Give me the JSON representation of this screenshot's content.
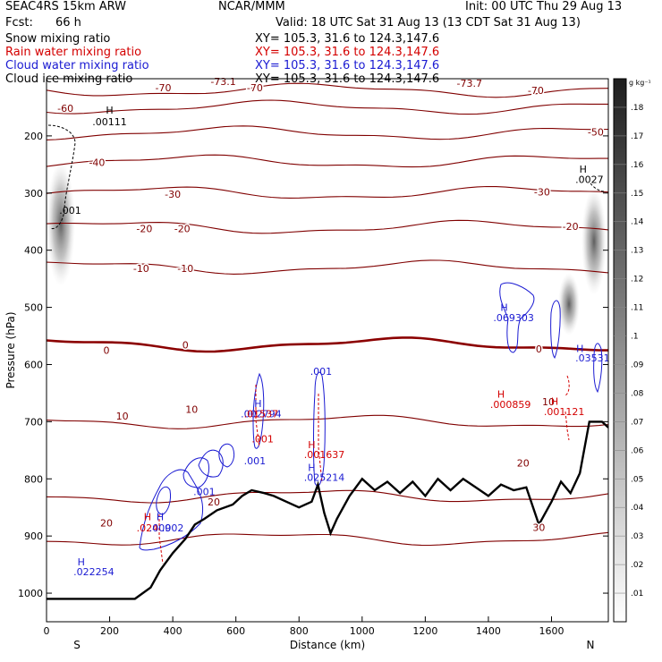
{
  "header": {
    "model": "SEAC4RS 15km ARW",
    "org": "NCAR/MMM",
    "init": "Init: 00 UTC Thu 29 Aug 13",
    "fcst_label": "Fcst:",
    "fcst_value": "66 h",
    "valid": "Valid: 18 UTC Sat 31 Aug 13 (13 CDT Sat 31 Aug 13)",
    "fields": [
      {
        "name": "Snow mixing ratio",
        "xy": "XY= 105.3, 31.6 to 124.3,147.6",
        "color": "#000000"
      },
      {
        "name": "Rain water mixing ratio",
        "xy": "XY= 105.3, 31.6 to 124.3,147.6",
        "color": "#d40000"
      },
      {
        "name": "Cloud water mixing ratio",
        "xy": "XY= 105.3, 31.6 to 124.3,147.6",
        "color": "#1a1ad2"
      },
      {
        "name": "Cloud ice mixing ratio",
        "xy": "XY= 105.3, 31.6 to 124.3,147.6",
        "color": "#000000"
      }
    ]
  },
  "chart_data": {
    "type": "cross-section",
    "xlabel": "Distance (km)",
    "ylabel": "Pressure (hPa)",
    "xlim": [
      0,
      1780
    ],
    "ylim": [
      1050,
      100
    ],
    "x_ticks": [
      0,
      200,
      400,
      600,
      800,
      1000,
      1200,
      1400,
      1600
    ],
    "y_ticks": [
      200,
      300,
      400,
      500,
      600,
      700,
      800,
      900,
      1000
    ],
    "x_end_labels": {
      "left": "S",
      "right": "N"
    },
    "colorbar": {
      "unit": "g kg⁻¹",
      "ticks": [
        ".01",
        ".02",
        ".03",
        ".04",
        ".05",
        ".06",
        ".07",
        ".08",
        ".09",
        ".1",
        ".11",
        ".12",
        ".13",
        ".14",
        ".15",
        ".16",
        ".17",
        ".18"
      ]
    },
    "temperature_contours": [
      {
        "label": "-70",
        "p": 120
      },
      {
        "label": "-60",
        "p": 150
      },
      {
        "label": "-50",
        "p": 195
      },
      {
        "label": "-40",
        "p": 245
      },
      {
        "label": "-30",
        "p": 300
      },
      {
        "label": "-20",
        "p": 360
      },
      {
        "label": "-10",
        "p": 430
      },
      {
        "label": "0",
        "p": 565
      },
      {
        "label": "10",
        "p": 700
      },
      {
        "label": "20",
        "p": 830
      },
      {
        "label": "30",
        "p": 905
      }
    ],
    "temperature_labels": [
      {
        "text": "-73.1",
        "x": 560,
        "p": 105
      },
      {
        "text": "-73.7",
        "x": 1340,
        "p": 108
      },
      {
        "text": "-70",
        "x": 370,
        "p": 116
      },
      {
        "text": "-70",
        "x": 660,
        "p": 116
      },
      {
        "text": "-70",
        "x": 1550,
        "p": 120
      },
      {
        "text": "-60",
        "x": 60,
        "p": 152
      },
      {
        "text": "-50",
        "x": 1740,
        "p": 193
      },
      {
        "text": "-40",
        "x": 160,
        "p": 246
      },
      {
        "text": "-30",
        "x": 400,
        "p": 302
      },
      {
        "text": "-30",
        "x": 1570,
        "p": 298
      },
      {
        "text": "-20",
        "x": 310,
        "p": 362
      },
      {
        "text": "-20",
        "x": 430,
        "p": 362
      },
      {
        "text": "-20",
        "x": 1660,
        "p": 358
      },
      {
        "text": "-10",
        "x": 300,
        "p": 432
      },
      {
        "text": "-10",
        "x": 440,
        "p": 432
      },
      {
        "text": "0",
        "x": 190,
        "p": 575
      },
      {
        "text": "0",
        "x": 440,
        "p": 566
      },
      {
        "text": "0",
        "x": 1560,
        "p": 573
      },
      {
        "text": "10",
        "x": 240,
        "p": 690
      },
      {
        "text": "10",
        "x": 460,
        "p": 678
      },
      {
        "text": "10",
        "x": 1590,
        "p": 665
      },
      {
        "text": "20",
        "x": 190,
        "p": 877
      },
      {
        "text": "20",
        "x": 530,
        "p": 840
      },
      {
        "text": "20",
        "x": 1510,
        "p": 772
      },
      {
        "text": "30",
        "x": 1560,
        "p": 885
      }
    ],
    "terrain": [
      [
        0,
        1010
      ],
      [
        280,
        1010
      ],
      [
        330,
        990
      ],
      [
        360,
        960
      ],
      [
        400,
        930
      ],
      [
        440,
        905
      ],
      [
        470,
        880
      ],
      [
        500,
        870
      ],
      [
        540,
        855
      ],
      [
        590,
        845
      ],
      [
        620,
        830
      ],
      [
        650,
        820
      ],
      [
        690,
        825
      ],
      [
        720,
        830
      ],
      [
        760,
        840
      ],
      [
        800,
        850
      ],
      [
        840,
        840
      ],
      [
        860,
        810
      ],
      [
        880,
        860
      ],
      [
        900,
        895
      ],
      [
        920,
        870
      ],
      [
        960,
        830
      ],
      [
        1000,
        800
      ],
      [
        1040,
        820
      ],
      [
        1080,
        805
      ],
      [
        1120,
        825
      ],
      [
        1160,
        805
      ],
      [
        1200,
        830
      ],
      [
        1240,
        800
      ],
      [
        1280,
        820
      ],
      [
        1320,
        800
      ],
      [
        1360,
        815
      ],
      [
        1400,
        830
      ],
      [
        1440,
        810
      ],
      [
        1480,
        820
      ],
      [
        1520,
        815
      ],
      [
        1560,
        880
      ],
      [
        1600,
        840
      ],
      [
        1630,
        805
      ],
      [
        1660,
        825
      ],
      [
        1690,
        790
      ],
      [
        1720,
        700
      ],
      [
        1760,
        700
      ],
      [
        1780,
        710
      ]
    ],
    "maxima_labels": [
      {
        "text": "H",
        "x": 200,
        "p": 155,
        "color": "#000000"
      },
      {
        "text": ".00111",
        "x": 200,
        "p": 175,
        "color": "#000000"
      },
      {
        "text": ".001",
        "x": 75,
        "p": 330,
        "color": "#000000"
      },
      {
        "text": "H",
        "x": 1700,
        "p": 258,
        "color": "#000000"
      },
      {
        "text": ".0027",
        "x": 1720,
        "p": 276,
        "color": "#000000"
      },
      {
        "text": "H",
        "x": 1450,
        "p": 500,
        "color": "#1a1ad2"
      },
      {
        "text": ".069303",
        "x": 1480,
        "p": 518,
        "color": "#1a1ad2"
      },
      {
        "text": "H",
        "x": 1690,
        "p": 572,
        "color": "#1a1ad2"
      },
      {
        "text": ".03531",
        "x": 1730,
        "p": 588,
        "color": "#1a1ad2"
      },
      {
        "text": ".001",
        "x": 870,
        "p": 612,
        "color": "#1a1ad2"
      },
      {
        "text": "H",
        "x": 1440,
        "p": 652,
        "color": "#d40000"
      },
      {
        "text": ".000859",
        "x": 1470,
        "p": 670,
        "color": "#d40000"
      },
      {
        "text": "H",
        "x": 1610,
        "p": 664,
        "color": "#d40000"
      },
      {
        "text": ".001121",
        "x": 1640,
        "p": 682,
        "color": "#d40000"
      },
      {
        "text": "H",
        "x": 670,
        "p": 668,
        "color": "#1a1ad2"
      },
      {
        "text": ".002794",
        "x": 680,
        "p": 686,
        "color": "#1a1ad2"
      },
      {
        "text": ".01537",
        "x": 680,
        "p": 686,
        "color": "#d40000"
      },
      {
        "text": ".001",
        "x": 685,
        "p": 730,
        "color": "#d40000"
      },
      {
        "text": ".001",
        "x": 660,
        "p": 768,
        "color": "#1a1ad2"
      },
      {
        "text": "H",
        "x": 840,
        "p": 740,
        "color": "#d40000"
      },
      {
        "text": ".001637",
        "x": 880,
        "p": 757,
        "color": "#d40000"
      },
      {
        "text": "H",
        "x": 840,
        "p": 780,
        "color": "#1a1ad2"
      },
      {
        "text": ".025214",
        "x": 880,
        "p": 797,
        "color": "#1a1ad2"
      },
      {
        "text": ".001",
        "x": 500,
        "p": 822,
        "color": "#1a1ad2"
      },
      {
        "text": "H",
        "x": 320,
        "p": 866,
        "color": "#d40000"
      },
      {
        "text": "H",
        "x": 360,
        "p": 866,
        "color": "#1a1ad2"
      },
      {
        "text": ".024",
        "x": 320,
        "p": 886,
        "color": "#d40000"
      },
      {
        "text": ".009",
        "x": 360,
        "p": 886,
        "color": "#1a1ad2"
      },
      {
        "text": ".002",
        "x": 400,
        "p": 886,
        "color": "#1a1ad2"
      },
      {
        "text": "H",
        "x": 110,
        "p": 945,
        "color": "#1a1ad2"
      },
      {
        "text": ".022254",
        "x": 150,
        "p": 962,
        "color": "#1a1ad2"
      }
    ]
  },
  "colors": {
    "temperature": "#800000",
    "zero_isotherm": "#8b0000",
    "terrain": "#000000",
    "cloud_water": "#1a1ad2",
    "rain_water": "#d40000",
    "frame": "#000000"
  }
}
